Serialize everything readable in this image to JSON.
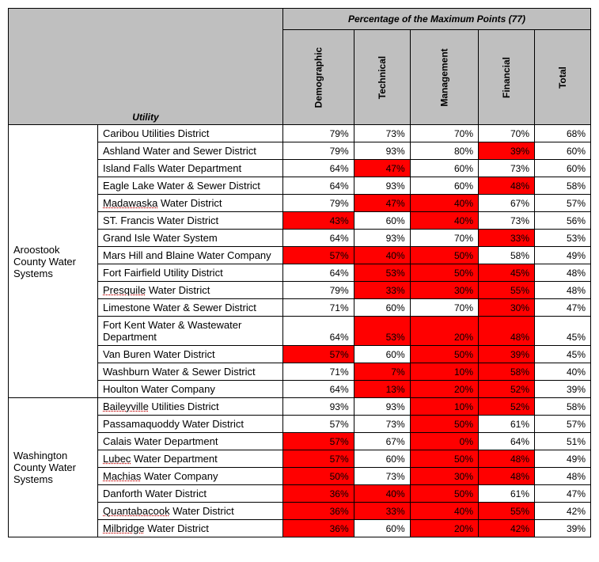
{
  "header": {
    "top_title": "Percentage of the Maximum Points (77)",
    "utility_label": "Utility",
    "columns": [
      "Demographic",
      "Technical",
      "Management",
      "Financial",
      "Total"
    ]
  },
  "highlight_color": "#ff0000",
  "header_bg": "#bfbfbf",
  "groups": [
    {
      "name": "Aroostook County Water Systems",
      "rows": [
        {
          "utility": "Caribou Utilities District",
          "cells": [
            {
              "v": "79%",
              "h": false
            },
            {
              "v": "73%",
              "h": false
            },
            {
              "v": "70%",
              "h": false
            },
            {
              "v": "70%",
              "h": false
            },
            {
              "v": "68%",
              "h": false
            }
          ]
        },
        {
          "utility": "Ashland Water and Sewer District",
          "cells": [
            {
              "v": "79%",
              "h": false
            },
            {
              "v": "93%",
              "h": false
            },
            {
              "v": "80%",
              "h": false
            },
            {
              "v": "39%",
              "h": true
            },
            {
              "v": "60%",
              "h": false
            }
          ]
        },
        {
          "utility": "Island Falls Water Department",
          "cells": [
            {
              "v": "64%",
              "h": false
            },
            {
              "v": "47%",
              "h": true
            },
            {
              "v": "60%",
              "h": false
            },
            {
              "v": "73%",
              "h": false
            },
            {
              "v": "60%",
              "h": false
            }
          ]
        },
        {
          "utility": "Eagle Lake Water & Sewer District",
          "cells": [
            {
              "v": "64%",
              "h": false
            },
            {
              "v": "93%",
              "h": false
            },
            {
              "v": "60%",
              "h": false
            },
            {
              "v": "48%",
              "h": true
            },
            {
              "v": "58%",
              "h": false
            }
          ]
        },
        {
          "utility": "Madawaska Water District",
          "ul": true,
          "cells": [
            {
              "v": "79%",
              "h": false
            },
            {
              "v": "47%",
              "h": true
            },
            {
              "v": "40%",
              "h": true
            },
            {
              "v": "67%",
              "h": false
            },
            {
              "v": "57%",
              "h": false
            }
          ]
        },
        {
          "utility": "ST. Francis Water District",
          "cells": [
            {
              "v": "43%",
              "h": true
            },
            {
              "v": "60%",
              "h": false
            },
            {
              "v": "40%",
              "h": true
            },
            {
              "v": "73%",
              "h": false
            },
            {
              "v": "56%",
              "h": false
            }
          ]
        },
        {
          "utility": "Grand Isle Water System",
          "cells": [
            {
              "v": "64%",
              "h": false
            },
            {
              "v": "93%",
              "h": false
            },
            {
              "v": "70%",
              "h": false
            },
            {
              "v": "33%",
              "h": true
            },
            {
              "v": "53%",
              "h": false
            }
          ]
        },
        {
          "utility": "Mars Hill and Blaine Water Company",
          "cells": [
            {
              "v": "57%",
              "h": true
            },
            {
              "v": "40%",
              "h": true
            },
            {
              "v": "50%",
              "h": true
            },
            {
              "v": "58%",
              "h": false
            },
            {
              "v": "49%",
              "h": false
            }
          ]
        },
        {
          "utility": "Fort Fairfield Utility District",
          "cells": [
            {
              "v": "64%",
              "h": false
            },
            {
              "v": "53%",
              "h": true
            },
            {
              "v": "50%",
              "h": true
            },
            {
              "v": "45%",
              "h": true
            },
            {
              "v": "48%",
              "h": false
            }
          ]
        },
        {
          "utility": "Presquile Water District",
          "ul": true,
          "cells": [
            {
              "v": "79%",
              "h": false
            },
            {
              "v": "33%",
              "h": true
            },
            {
              "v": "30%",
              "h": true
            },
            {
              "v": "55%",
              "h": true
            },
            {
              "v": "48%",
              "h": false
            }
          ]
        },
        {
          "utility": "Limestone Water & Sewer District",
          "cells": [
            {
              "v": "71%",
              "h": false
            },
            {
              "v": "60%",
              "h": false
            },
            {
              "v": "70%",
              "h": false
            },
            {
              "v": "30%",
              "h": true
            },
            {
              "v": "47%",
              "h": false
            }
          ]
        },
        {
          "utility": "Fort Kent Water & Wastewater Department",
          "cells": [
            {
              "v": "64%",
              "h": false
            },
            {
              "v": "53%",
              "h": true
            },
            {
              "v": "20%",
              "h": true
            },
            {
              "v": "48%",
              "h": true
            },
            {
              "v": "45%",
              "h": false
            }
          ]
        },
        {
          "utility": "Van Buren Water District",
          "cells": [
            {
              "v": "57%",
              "h": true
            },
            {
              "v": "60%",
              "h": false
            },
            {
              "v": "50%",
              "h": true
            },
            {
              "v": "39%",
              "h": true
            },
            {
              "v": "45%",
              "h": false
            }
          ]
        },
        {
          "utility": "Washburn Water & Sewer District",
          "cells": [
            {
              "v": "71%",
              "h": false
            },
            {
              "v": "7%",
              "h": true
            },
            {
              "v": "10%",
              "h": true
            },
            {
              "v": "58%",
              "h": true
            },
            {
              "v": "40%",
              "h": false
            }
          ]
        },
        {
          "utility": "Houlton Water Company",
          "cells": [
            {
              "v": "64%",
              "h": false
            },
            {
              "v": "13%",
              "h": true
            },
            {
              "v": "20%",
              "h": true
            },
            {
              "v": "52%",
              "h": true
            },
            {
              "v": "39%",
              "h": false
            }
          ]
        }
      ]
    },
    {
      "name": "Washington County Water Systems",
      "rows": [
        {
          "utility": "Baileyville Utilities District",
          "ul": true,
          "cells": [
            {
              "v": "93%",
              "h": false
            },
            {
              "v": "93%",
              "h": false
            },
            {
              "v": "10%",
              "h": true
            },
            {
              "v": "52%",
              "h": true
            },
            {
              "v": "58%",
              "h": false
            }
          ]
        },
        {
          "utility": "Passamaquoddy Water District",
          "cells": [
            {
              "v": "57%",
              "h": false
            },
            {
              "v": "73%",
              "h": false
            },
            {
              "v": "50%",
              "h": true
            },
            {
              "v": "61%",
              "h": false
            },
            {
              "v": "57%",
              "h": false
            }
          ]
        },
        {
          "utility": "Calais Water Department",
          "cells": [
            {
              "v": "57%",
              "h": true
            },
            {
              "v": "67%",
              "h": false
            },
            {
              "v": "0%",
              "h": true
            },
            {
              "v": "64%",
              "h": false
            },
            {
              "v": "51%",
              "h": false
            }
          ]
        },
        {
          "utility": "Lubec Water Department",
          "ul": true,
          "cells": [
            {
              "v": "57%",
              "h": true
            },
            {
              "v": "60%",
              "h": false
            },
            {
              "v": "50%",
              "h": true
            },
            {
              "v": "48%",
              "h": true
            },
            {
              "v": "49%",
              "h": false
            }
          ]
        },
        {
          "utility": "Machias Water Company",
          "ul": true,
          "cells": [
            {
              "v": "50%",
              "h": true
            },
            {
              "v": "73%",
              "h": false
            },
            {
              "v": "30%",
              "h": true
            },
            {
              "v": "48%",
              "h": true
            },
            {
              "v": "48%",
              "h": false
            }
          ]
        },
        {
          "utility": "Danforth Water District",
          "cells": [
            {
              "v": "36%",
              "h": true
            },
            {
              "v": "40%",
              "h": true
            },
            {
              "v": "50%",
              "h": true
            },
            {
              "v": "61%",
              "h": false
            },
            {
              "v": "47%",
              "h": false
            }
          ]
        },
        {
          "utility": "Quantabacook Water District",
          "ul": true,
          "cells": [
            {
              "v": "36%",
              "h": true
            },
            {
              "v": "33%",
              "h": true
            },
            {
              "v": "40%",
              "h": true
            },
            {
              "v": "55%",
              "h": true
            },
            {
              "v": "42%",
              "h": false
            }
          ]
        },
        {
          "utility": "Milbridge Water District",
          "ul": true,
          "cells": [
            {
              "v": "36%",
              "h": true
            },
            {
              "v": "60%",
              "h": false
            },
            {
              "v": "20%",
              "h": true
            },
            {
              "v": "42%",
              "h": true
            },
            {
              "v": "39%",
              "h": false
            }
          ]
        }
      ]
    }
  ]
}
